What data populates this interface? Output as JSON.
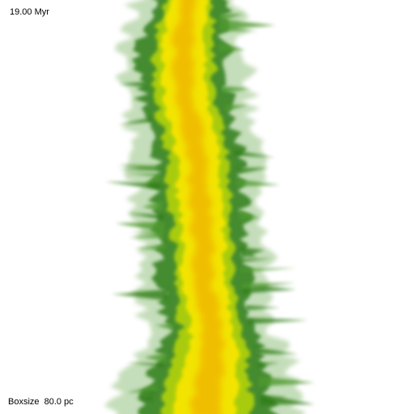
{
  "overlay": {
    "time": "19.00 Myr",
    "boxsize": "Boxsize  80.0 pc"
  },
  "colors": {
    "background": "#ffffff",
    "outer_filament": "#3c8c1e",
    "dark_edge": "#1f6b14",
    "middle_filament": "#b4d200",
    "core_yellow": "#f2e600",
    "core_orange": "#f0b400"
  }
}
